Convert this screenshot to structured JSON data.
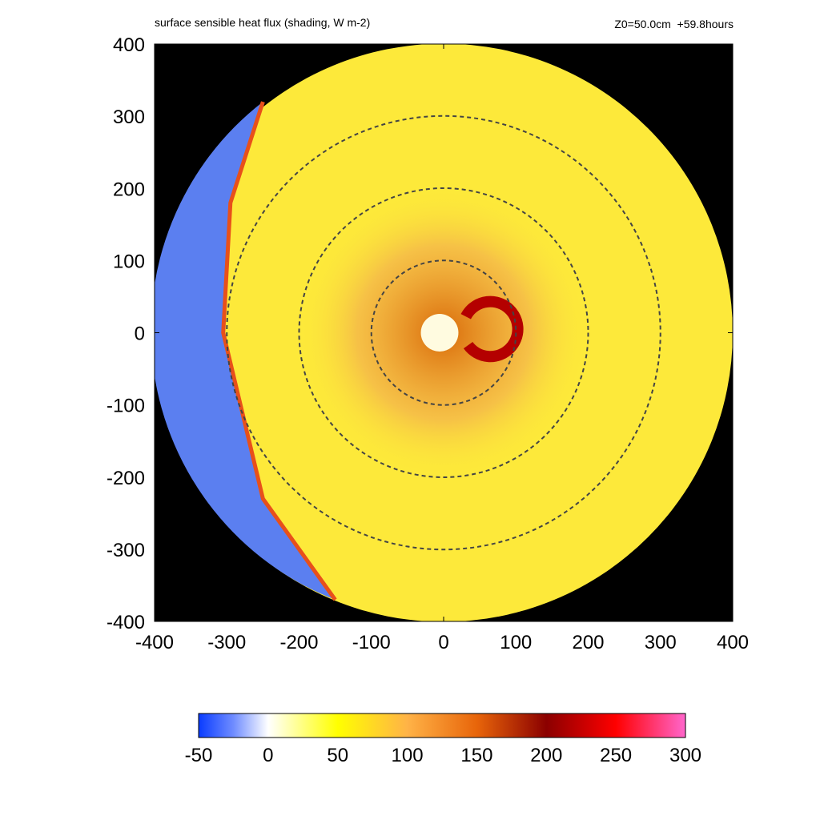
{
  "chart_data": {
    "type": "heatmap",
    "title": "surface sensible heat flux (shading, W m-2)",
    "annotation": "Z0=50.0cm  +59.8hours",
    "xlim": [
      -400,
      400
    ],
    "ylim": [
      -400,
      400
    ],
    "x_ticks": [
      "-400",
      "-300",
      "-200",
      "-100",
      "0",
      "100",
      "200",
      "300",
      "400"
    ],
    "y_ticks": [
      "400",
      "300",
      "200",
      "100",
      "0",
      "-100",
      "-200",
      "-300",
      "-400"
    ],
    "x_tick_values": [
      -400,
      -300,
      -200,
      -100,
      0,
      100,
      200,
      300,
      400
    ],
    "y_tick_values": [
      400,
      300,
      200,
      100,
      0,
      -100,
      -200,
      -300,
      -400
    ],
    "domain_radius": 400,
    "dashed_circle_radii": [
      100,
      200,
      300
    ],
    "front_line": {
      "points": [
        [
          -250,
          320
        ],
        [
          -295,
          180
        ],
        [
          -305,
          0
        ],
        [
          -250,
          -230
        ],
        [
          -150,
          -370
        ]
      ]
    },
    "colorbar": {
      "min": -50,
      "max": 300,
      "ticks": [
        "-50",
        "0",
        "50",
        "100",
        "150",
        "200",
        "250",
        "300"
      ],
      "tick_values": [
        -50,
        0,
        50,
        100,
        150,
        200,
        250,
        300
      ],
      "stops": [
        {
          "value": -50,
          "color": "#0a3cff"
        },
        {
          "value": -25,
          "color": "#6f8cff"
        },
        {
          "value": 0,
          "color": "#ffffff"
        },
        {
          "value": 50,
          "color": "#ffff00"
        },
        {
          "value": 100,
          "color": "#ffb347"
        },
        {
          "value": 150,
          "color": "#e8650a"
        },
        {
          "value": 200,
          "color": "#8b0000"
        },
        {
          "value": 250,
          "color": "#ff0000"
        },
        {
          "value": 300,
          "color": "#ff66cc"
        }
      ]
    },
    "colors": {
      "background": "#000000",
      "cold_side": "#5b7ff0",
      "warm_side": "#fde93a",
      "core": "#fffbe0",
      "eyewall": "#b40000",
      "front": "#e8501a"
    }
  }
}
